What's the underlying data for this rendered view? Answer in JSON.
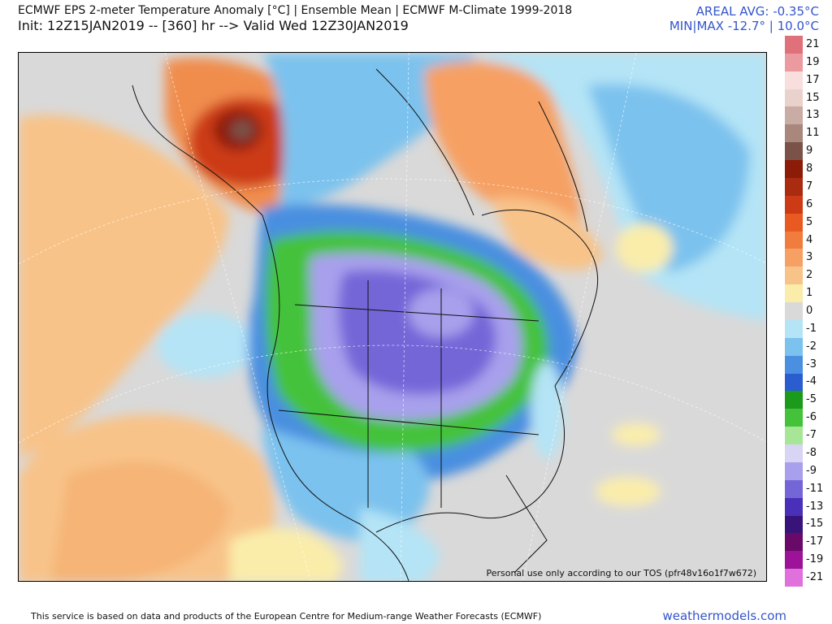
{
  "header": {
    "title_line1": "ECMWF EPS 2-meter Temperature Anomaly [°C] | Ensemble Mean | ECMWF M-Climate 1999-2018",
    "title_line2": "Init: 12Z15JAN2019 -- [360] hr --> Valid Wed 12Z30JAN2019",
    "areal_avg": "AREAL AVG: -0.35°C",
    "min_max": "MIN|MAX -12.7° | 10.0°C"
  },
  "map": {
    "tos_notice": "Personal use only according to our TOS (pfr48v16o1f7w672)"
  },
  "legend": {
    "entries": [
      {
        "label": "21",
        "color": "#e0707a"
      },
      {
        "label": "19",
        "color": "#eb9aa0"
      },
      {
        "label": "17",
        "color": "#f8dedd"
      },
      {
        "label": "15",
        "color": "#ead2cc"
      },
      {
        "label": "13",
        "color": "#c9aca4"
      },
      {
        "label": "11",
        "color": "#a9877d"
      },
      {
        "label": "9",
        "color": "#7a5248"
      },
      {
        "label": "8",
        "color": "#8c1c08"
      },
      {
        "label": "7",
        "color": "#a92b10"
      },
      {
        "label": "6",
        "color": "#cc3a16"
      },
      {
        "label": "5",
        "color": "#e85a22"
      },
      {
        "label": "4",
        "color": "#f07d3e"
      },
      {
        "label": "3",
        "color": "#f6a063"
      },
      {
        "label": "2",
        "color": "#f8c389"
      },
      {
        "label": "1",
        "color": "#faedaa"
      },
      {
        "label": "0",
        "color": "#d9d9d9"
      },
      {
        "label": "-1",
        "color": "#b4e4f6"
      },
      {
        "label": "-2",
        "color": "#7cc2ee"
      },
      {
        "label": "-3",
        "color": "#4a8fe0"
      },
      {
        "label": "-4",
        "color": "#2a5ed0"
      },
      {
        "label": "-5",
        "color": "#1c9a1c"
      },
      {
        "label": "-6",
        "color": "#44c23a"
      },
      {
        "label": "-7",
        "color": "#a6e696"
      },
      {
        "label": "-8",
        "color": "#d8d4f4"
      },
      {
        "label": "-9",
        "color": "#a8a0ec"
      },
      {
        "label": "-11",
        "color": "#7566d8"
      },
      {
        "label": "-13",
        "color": "#4a2fb8"
      },
      {
        "label": "-15",
        "color": "#38147a"
      },
      {
        "label": "-17",
        "color": "#6a0a68"
      },
      {
        "label": "-19",
        "color": "#9c1298"
      },
      {
        "label": "-21",
        "color": "#e070dc"
      }
    ]
  },
  "footer": {
    "disclaimer": "This service is based on data and products of the European Centre for Medium-range Weather Forecasts (ECMWF)",
    "website": "weathermodels.com"
  }
}
